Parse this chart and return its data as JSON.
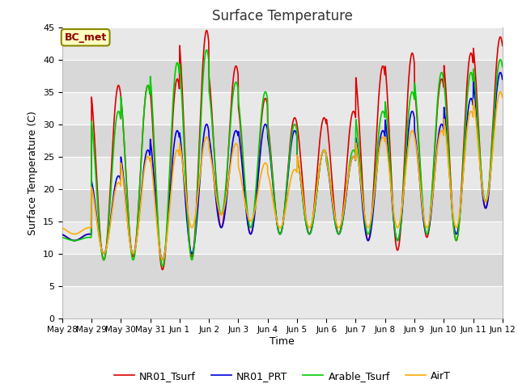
{
  "title": "Surface Temperature",
  "xlabel": "Time",
  "ylabel": "Surface Temperature (C)",
  "ylim": [
    0,
    45
  ],
  "yticks": [
    0,
    5,
    10,
    15,
    20,
    25,
    30,
    35,
    40,
    45
  ],
  "fig_bg": "#ffffff",
  "annotation": "BC_met",
  "legend": [
    "NR01_Tsurf",
    "NR01_PRT",
    "Arable_Tsurf",
    "AirT"
  ],
  "line_colors": [
    "#dd0000",
    "#0000dd",
    "#00cc00",
    "#ffaa00"
  ],
  "xtick_labels": [
    "May 28",
    "May 29",
    "May 30",
    "May 31",
    "Jun 1",
    "Jun 2",
    "Jun 3",
    "Jun 4",
    "Jun 5",
    "Jun 6",
    "Jun 7",
    "Jun 8",
    "Jun 9",
    "Jun 10",
    "Jun 11",
    "Jun 12"
  ],
  "n_days": 15,
  "pts_per_day": 96,
  "band_colors": [
    "#e8e8e8",
    "#d8d8d8"
  ],
  "peaks_NR01_Tsurf": [
    13,
    36,
    36,
    37,
    44.5,
    39,
    34,
    31,
    31,
    32,
    39,
    41,
    37,
    41,
    43.5,
    21
  ],
  "troughs_NR01_Tsurf": [
    12,
    9,
    9.5,
    7.5,
    9.5,
    14,
    13,
    13,
    13,
    13,
    12,
    10.5,
    12.5,
    12,
    17,
    21
  ],
  "peaks_NR01_PRT": [
    13,
    22,
    26,
    29,
    30,
    29,
    30,
    29,
    26,
    25,
    29,
    32,
    30,
    34,
    38,
    21
  ],
  "troughs_NR01_PRT": [
    12,
    10,
    10,
    9,
    10,
    14,
    13,
    13,
    13,
    13,
    12,
    12,
    13,
    13,
    17,
    21
  ],
  "peaks_Arable_Tsurf": [
    12.5,
    32,
    36,
    39.5,
    41.5,
    36.5,
    35,
    30,
    26,
    26,
    32,
    35,
    38,
    38,
    40,
    21
  ],
  "troughs_Arable_Tsurf": [
    12,
    9,
    9,
    8,
    9,
    16,
    14,
    13,
    13,
    13,
    13,
    12,
    13,
    12,
    18,
    21
  ],
  "peaks_AirT": [
    14,
    21,
    25,
    26,
    28,
    27,
    24,
    23,
    26,
    25,
    28,
    29,
    29,
    32,
    35,
    21
  ],
  "troughs_AirT": [
    13,
    10,
    10,
    9,
    14,
    16,
    15,
    14,
    14,
    14,
    14,
    14,
    14,
    14,
    18,
    21
  ]
}
